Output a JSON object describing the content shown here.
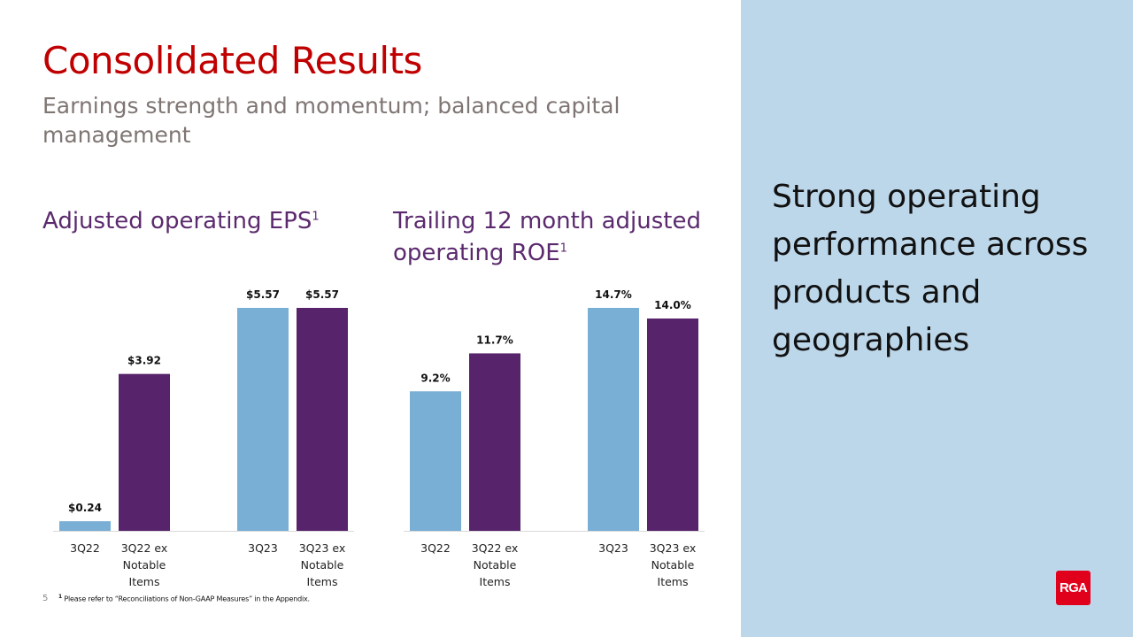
{
  "slide": {
    "title": "Consolidated Results",
    "subtitle": "Earnings strength and momentum; balanced capital management",
    "tagline": "Strong operating performance across products and geographies",
    "page_number": "5",
    "footnote_marker": "1",
    "footnote": "Please refer to “Reconciliations  of Non-GAAP Measures” in the Appendix.",
    "logo_text": "RGA"
  },
  "colors": {
    "title": "#c00000",
    "subtitle": "#7f7673",
    "chart_title": "#5b2a6e",
    "bar_light_blue": "#79aed5",
    "bar_purple": "#57236b",
    "panel": "#bdd7ea",
    "logo": "#e0001b"
  },
  "chart_data": [
    {
      "type": "bar",
      "title": "Adjusted operating EPS",
      "title_sup": "1",
      "categories": [
        "3Q22",
        "3Q22 ex Notable Items",
        "3Q23",
        "3Q23 ex Notable Items"
      ],
      "category_lines": [
        [
          "3Q22"
        ],
        [
          "3Q22 ex",
          "Notable",
          "Items"
        ],
        [
          "3Q23"
        ],
        [
          "3Q23 ex",
          "Notable",
          "Items"
        ]
      ],
      "values": [
        0.24,
        3.92,
        5.57,
        5.57
      ],
      "value_labels": [
        "$0.24",
        "$3.92",
        "$5.57",
        "$5.57"
      ],
      "bar_colors": [
        "light_blue",
        "purple",
        "light_blue",
        "purple"
      ],
      "ylim": [
        0,
        5.57
      ],
      "grid": false,
      "legend": "none"
    },
    {
      "type": "bar",
      "title": "Trailing 12 month adjusted operating ROE",
      "title_sup": "1",
      "categories": [
        "3Q22",
        "3Q22 ex Notable Items",
        "3Q23",
        "3Q23 ex Notable Items"
      ],
      "category_lines": [
        [
          "3Q22"
        ],
        [
          "3Q22 ex",
          "Notable",
          "Items"
        ],
        [
          "3Q23"
        ],
        [
          "3Q23 ex",
          "Notable",
          "Items"
        ]
      ],
      "values": [
        9.2,
        11.7,
        14.7,
        14.0
      ],
      "value_labels": [
        "9.2%",
        "11.7%",
        "14.7%",
        "14.0%"
      ],
      "bar_colors": [
        "light_blue",
        "purple",
        "light_blue",
        "purple"
      ],
      "ylim": [
        0,
        14.7
      ],
      "grid": false,
      "legend": "none"
    }
  ]
}
